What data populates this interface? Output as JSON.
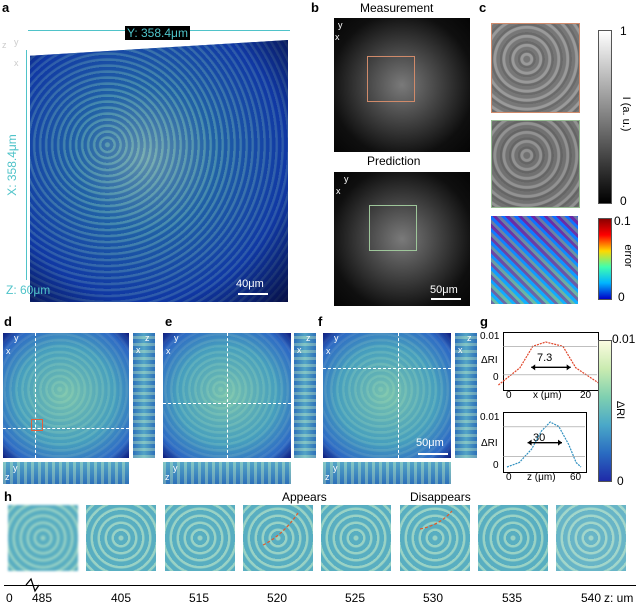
{
  "panel_a": {
    "label": "a",
    "y_dim": "Y: 358.4μm",
    "x_dim": "X: 358.4μm",
    "z_dim": "Z: 60μm",
    "scale": "40μm",
    "axes": {
      "z": "z",
      "y": "y",
      "x": "x"
    }
  },
  "panel_b": {
    "label": "b",
    "top_title": "Measurement",
    "bottom_title": "Prediction",
    "scale": "50μm",
    "axes": {
      "y": "y",
      "x": "x"
    }
  },
  "panel_c": {
    "label": "c",
    "cb_intensity": {
      "top": "1",
      "bottom": "0",
      "title": "I (a. u.)"
    },
    "cb_error": {
      "top": "0.1",
      "bottom": "0",
      "title": "error"
    }
  },
  "panel_d": {
    "label": "d",
    "axes_top": {
      "y": "y",
      "x": "x"
    },
    "axes_side": {
      "z": "z",
      "x": "x"
    },
    "axes_bottom": {
      "z": "z",
      "y": "y"
    }
  },
  "panel_e": {
    "label": "e",
    "axes_top": {
      "y": "y",
      "x": "x"
    },
    "axes_side": {
      "z": "z",
      "x": "x"
    },
    "axes_bottom": {
      "z": "z",
      "y": "y"
    }
  },
  "panel_f": {
    "label": "f",
    "axes_top": {
      "y": "y",
      "x": "x"
    },
    "axes_side": {
      "z": "z",
      "x": "x"
    },
    "axes_bottom": {
      "z": "z",
      "y": "y"
    },
    "scale": "50μm"
  },
  "panel_g": {
    "label": "g",
    "top": {
      "ylabel": "ΔRI",
      "yticks": [
        "0.01",
        "0"
      ],
      "xlabel": "x (μm)",
      "xticks": [
        "0",
        "20"
      ],
      "width_label": "7.3"
    },
    "bottom": {
      "ylabel": "ΔRI",
      "yticks": [
        "0.01",
        "0"
      ],
      "xlabel": "z (μm)",
      "xticks": [
        "0",
        "60"
      ],
      "width_label": "30"
    },
    "cb": {
      "top": "0.01",
      "bottom": "0",
      "title": "ΔRI"
    }
  },
  "panel_h": {
    "label": "h",
    "appears": "Appears",
    "disappears": "Disappears",
    "axis_ticks": [
      "0",
      "485",
      "405",
      "515",
      "520",
      "525",
      "530",
      "535",
      "540"
    ],
    "axis_unit": "z: um"
  },
  "chart_data": [
    {
      "type": "line",
      "series": [
        {
          "values": [
            0.0,
            0.004,
            0.009,
            0.01,
            0.009,
            0.004,
            0.0
          ]
        }
      ],
      "x": [
        -2,
        3,
        6,
        9,
        13,
        16,
        22
      ],
      "xlabel": "x (μm)",
      "ylabel": "ΔRI",
      "xlim": [
        0,
        20
      ],
      "ylim": [
        0,
        0.01
      ]
    },
    {
      "type": "line",
      "series": [
        {
          "values": [
            0.0,
            0.001,
            0.004,
            0.008,
            0.01,
            0.009,
            0.005,
            0.001,
            0.0
          ]
        }
      ],
      "x": [
        0,
        10,
        20,
        28,
        35,
        42,
        50,
        56,
        60
      ],
      "xlabel": "z (μm)",
      "ylabel": "ΔRI",
      "xlim": [
        0,
        60
      ],
      "ylim": [
        0,
        0.01
      ]
    }
  ]
}
